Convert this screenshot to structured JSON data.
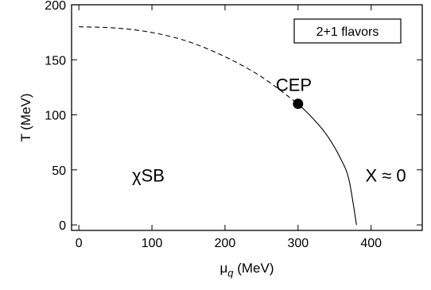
{
  "chart_data": {
    "type": "line",
    "title": "",
    "xlabel": "μq (MeV)",
    "xlabel_symbol": "μ",
    "xlabel_subscript": "q",
    "xlabel_unit": " (MeV)",
    "ylabel": "T (MeV)",
    "xlim": [
      -10,
      470
    ],
    "ylim": [
      -5,
      200
    ],
    "xticks": [
      0,
      100,
      200,
      300,
      400
    ],
    "yticks": [
      0,
      50,
      100,
      150,
      200
    ],
    "grid": false,
    "series": [
      {
        "style": "dashed",
        "x": [
          0,
          50,
          100,
          150,
          200,
          250,
          300
        ],
        "y": [
          180,
          178.9,
          174.8,
          166.5,
          152.8,
          134.5,
          110
        ]
      },
      {
        "style": "solid",
        "x": [
          300,
          320,
          340,
          360,
          370,
          380
        ],
        "y": [
          110,
          97,
          81,
          58,
          40,
          0
        ]
      }
    ],
    "points": [
      {
        "label": "CEP",
        "x": 300,
        "y": 110
      }
    ],
    "annotations": [
      {
        "text": "χSB",
        "x": 95,
        "y": 45
      },
      {
        "text": "X ≈ 0",
        "x": 420,
        "y": 45
      }
    ],
    "legend_box": {
      "text": "2+1 flavors",
      "placement": "top-right"
    }
  }
}
